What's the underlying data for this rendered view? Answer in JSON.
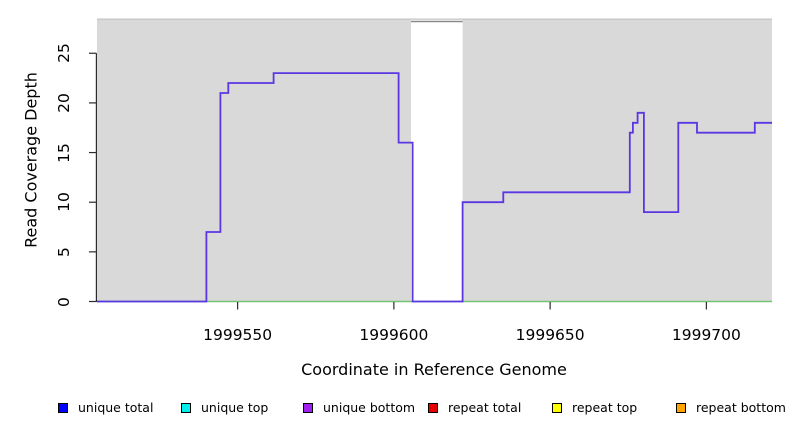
{
  "figure": {
    "background": "#FFFFFF",
    "panel_background": "#D9D9D9",
    "panel_top_edge_color": "#C4C4C4",
    "axis_color": "#2B2B2B"
  },
  "chart_data": {
    "type": "line",
    "subtype": "step",
    "title": "",
    "xlabel": "Coordinate in Reference Genome",
    "ylabel": "Read Coverage Depth",
    "xlim": [
      1999505,
      1999721
    ],
    "ylim": [
      0,
      28.5
    ],
    "grid": "off",
    "legend_position": "bottom",
    "x_ticks": [
      {
        "value": 1999550,
        "label": "1999550"
      },
      {
        "value": 1999600,
        "label": "1999600"
      },
      {
        "value": 1999650,
        "label": "1999650"
      },
      {
        "value": 1999700,
        "label": "1999700"
      }
    ],
    "y_ticks": [
      {
        "value": 0,
        "label": "0"
      },
      {
        "value": 5,
        "label": "5"
      },
      {
        "value": 10,
        "label": "10"
      },
      {
        "value": 15,
        "label": "15"
      },
      {
        "value": 20,
        "label": "20"
      },
      {
        "value": 25,
        "label": "25"
      }
    ],
    "series": [
      {
        "name": "zero-baseline",
        "color": "#74C476",
        "width": 1.6,
        "steps": [
          [
            1999505,
            0
          ]
        ],
        "x_end": 1999721
      },
      {
        "name": "unique-coverage-step-line",
        "color": "#5B36E3",
        "width": 1.8,
        "steps": [
          [
            1999505,
            0
          ],
          [
            1999540,
            7
          ],
          [
            1999544.5,
            21
          ],
          [
            1999547,
            22
          ],
          [
            1999561.5,
            23
          ],
          [
            1999601.5,
            16
          ],
          [
            1999606,
            0
          ],
          [
            1999622,
            10
          ],
          [
            1999635,
            11
          ],
          [
            1999675.5,
            17
          ],
          [
            1999676.5,
            18
          ],
          [
            1999678,
            19
          ],
          [
            1999680,
            9
          ],
          [
            1999691,
            18
          ],
          [
            1999697,
            17
          ],
          [
            1999715.5,
            18
          ]
        ],
        "x_end": 1999721
      }
    ],
    "gap_region": {
      "x0": 1999605.5,
      "x1": 1999622,
      "fill": "#FFFFFF",
      "top_line_color": "#8A8A8A",
      "top_line_value": 28.2
    },
    "legend": [
      {
        "label": "unique total",
        "color": "#0000FF"
      },
      {
        "label": "unique top",
        "color": "#00EEEE"
      },
      {
        "label": "unique bottom",
        "color": "#A020F0"
      },
      {
        "label": "repeat total",
        "color": "#E60000"
      },
      {
        "label": "repeat top",
        "color": "#FFFF00"
      },
      {
        "label": "repeat bottom",
        "color": "#FFA500"
      }
    ]
  }
}
